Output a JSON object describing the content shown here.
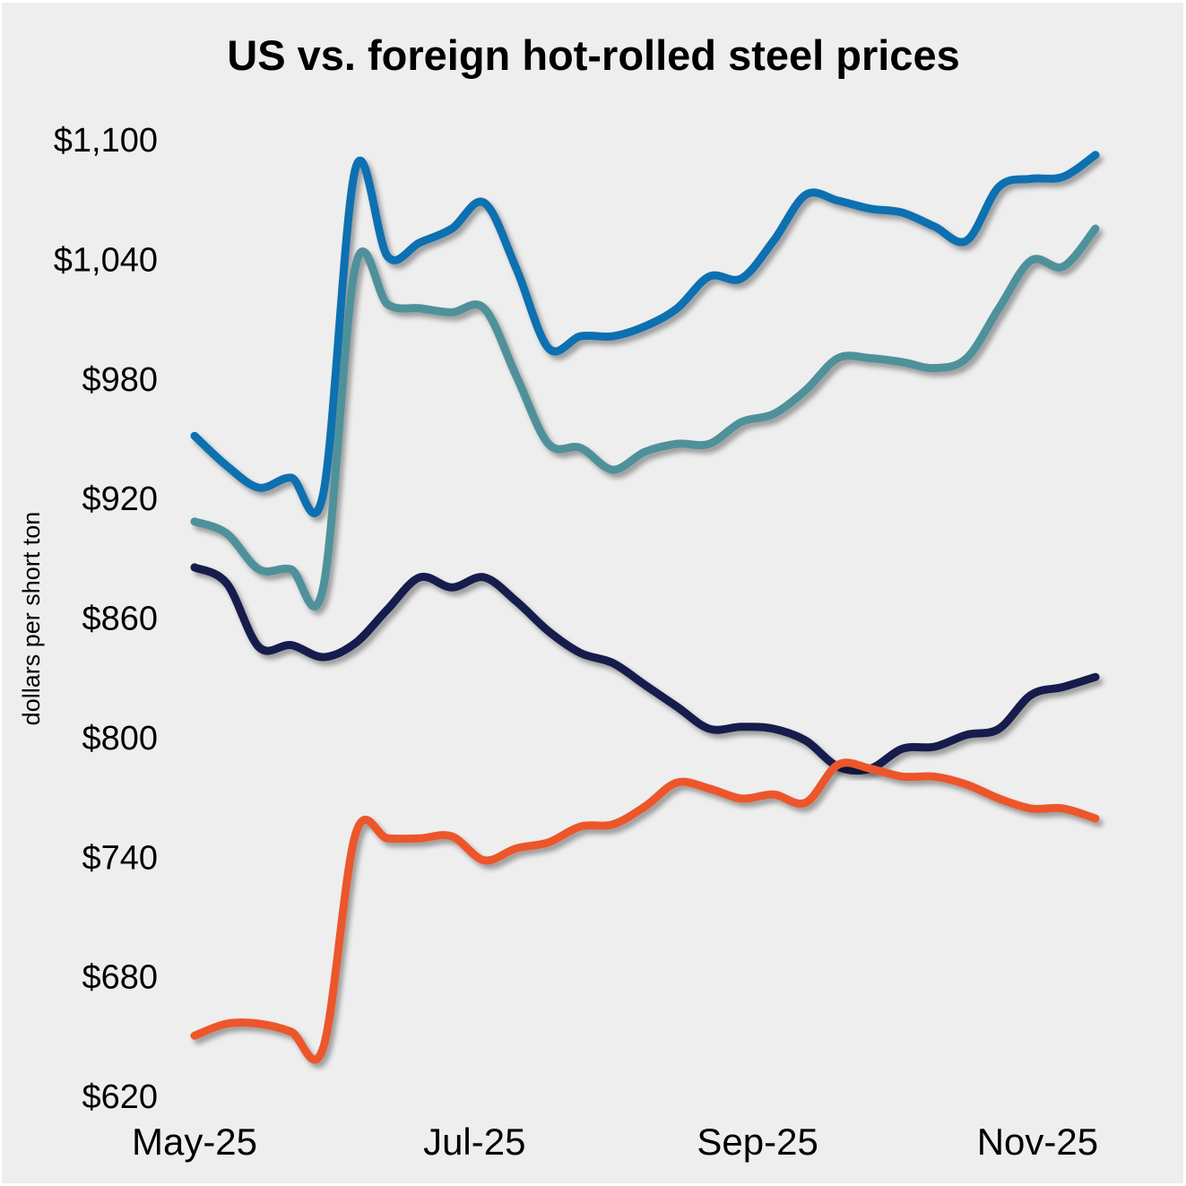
{
  "chart_data": {
    "type": "line",
    "title": "US vs. foreign hot-rolled steel prices",
    "xlabel": "",
    "ylabel": "dollars per short ton",
    "ylim": [
      620,
      1100
    ],
    "yticks": [
      620,
      680,
      740,
      800,
      860,
      920,
      980,
      1040,
      1100
    ],
    "ytick_labels": [
      "$620",
      "$680",
      "$740",
      "$800",
      "$860",
      "$920",
      "$980",
      "$1,040",
      "$1,100"
    ],
    "x_count": 29,
    "xticks": [
      {
        "index": 0,
        "label": "May-25"
      },
      {
        "index": 8.7,
        "label": "Jul-25"
      },
      {
        "index": 17.5,
        "label": "Sep-25"
      },
      {
        "index": 26.2,
        "label": "Nov-25"
      }
    ],
    "grid": false,
    "legend": "none",
    "series": [
      {
        "name": "series-blue",
        "color": "#1170b1",
        "values": [
          951,
          936,
          925,
          930,
          922,
          1085,
          1041,
          1048,
          1055,
          1068,
          1035,
          995,
          1001,
          1001,
          1006,
          1015,
          1031,
          1030,
          1049,
          1072,
          1069,
          1065,
          1063,
          1056,
          1049,
          1076,
          1080,
          1081,
          1092
        ]
      },
      {
        "name": "series-teal",
        "color": "#50919a",
        "values": [
          908,
          902,
          884,
          884,
          875,
          1036,
          1017,
          1015,
          1013,
          1015,
          981,
          947,
          945,
          934,
          943,
          947,
          947,
          958,
          962,
          974,
          990,
          990,
          988,
          985,
          990,
          1015,
          1039,
          1036,
          1055
        ]
      },
      {
        "name": "series-navy",
        "color": "#141a4b",
        "values": [
          885,
          877,
          845,
          846,
          840,
          847,
          864,
          880,
          875,
          880,
          868,
          853,
          842,
          837,
          826,
          815,
          804,
          805,
          804,
          798,
          785,
          784,
          794,
          795,
          801,
          804,
          821,
          825,
          830
        ]
      },
      {
        "name": "series-orange",
        "color": "#ec572b",
        "values": [
          650,
          656,
          656,
          652,
          644,
          751,
          749,
          749,
          750,
          738,
          744,
          747,
          755,
          756,
          765,
          777,
          774,
          769,
          771,
          767,
          786,
          784,
          780,
          780,
          776,
          769,
          764,
          764,
          759
        ]
      }
    ]
  }
}
